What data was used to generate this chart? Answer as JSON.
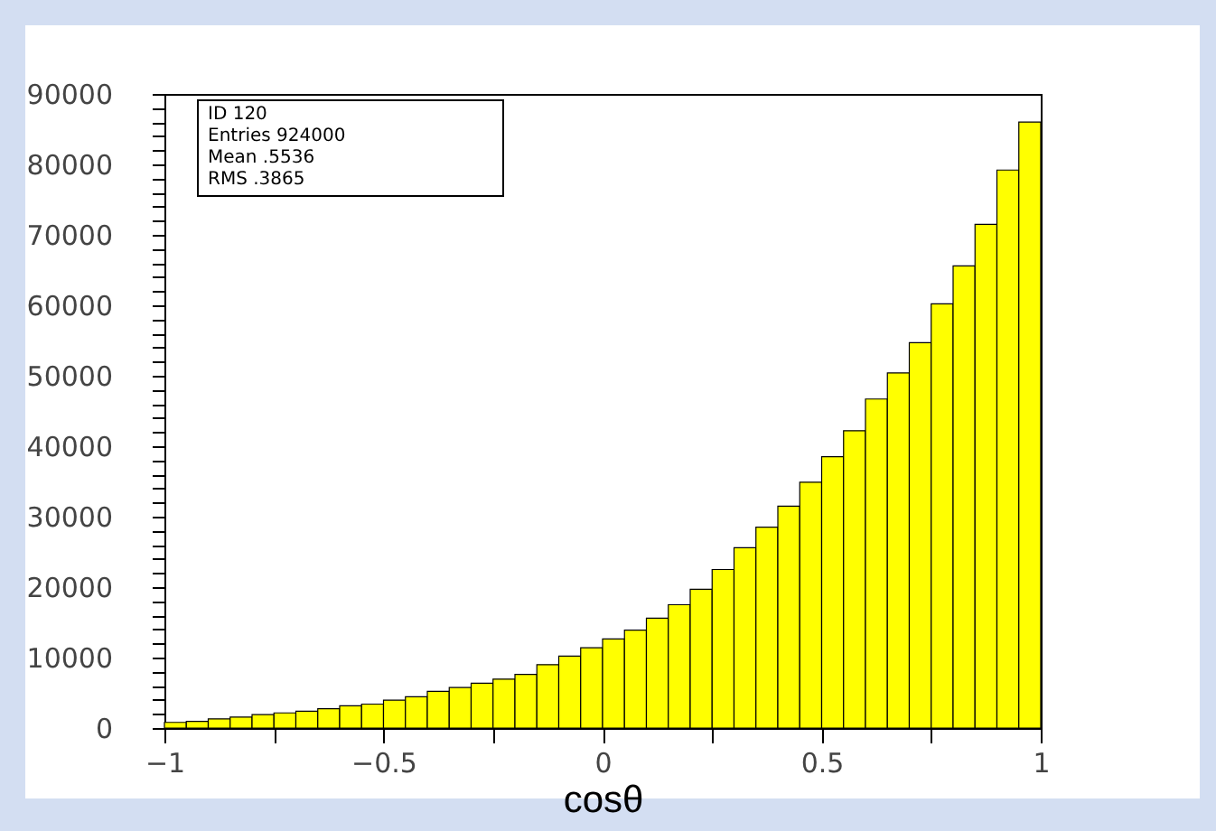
{
  "chart_data": {
    "type": "histogram",
    "xlabel": "cosθ",
    "bins": [
      -1,
      -0.95,
      -0.9,
      -0.85,
      -0.8,
      -0.75,
      -0.7,
      -0.65,
      -0.6,
      -0.55,
      -0.5,
      -0.45,
      -0.4,
      -0.35,
      -0.3,
      -0.25,
      -0.2,
      -0.15,
      -0.1,
      -0.05,
      0,
      0.05,
      0.1,
      0.15,
      0.2,
      0.25,
      0.3,
      0.35,
      0.4,
      0.45,
      0.5,
      0.55,
      0.6,
      0.65,
      0.7,
      0.75,
      0.8,
      0.85,
      0.9,
      0.95,
      1
    ],
    "values": [
      800,
      950,
      1300,
      1550,
      1900,
      2150,
      2400,
      2750,
      3150,
      3400,
      3950,
      4450,
      5200,
      5750,
      6350,
      6950,
      7600,
      9000,
      10200,
      11400,
      12650,
      13900,
      15600,
      17500,
      19700,
      22500,
      25600,
      28500,
      31500,
      34900,
      38500,
      42200,
      46700,
      50400,
      54700,
      60200,
      65600,
      71500,
      79200,
      86000
    ],
    "color": "#ffff00",
    "xlim": [
      -1,
      1
    ],
    "xticks": [
      {
        "value": -1,
        "label": "−1"
      },
      {
        "value": -0.75,
        "label": null
      },
      {
        "value": -0.5,
        "label": "−0.5"
      },
      {
        "value": -0.25,
        "label": null
      },
      0,
      {
        "value": 0.25,
        "label": null
      },
      0.5,
      {
        "value": 0.75,
        "label": null
      },
      1
    ],
    "ylim": [
      0,
      90000
    ],
    "yticks": [
      0,
      {
        "value": 2000,
        "label": null
      },
      {
        "value": 4000,
        "label": null
      },
      {
        "value": 6000,
        "label": null
      },
      {
        "value": 8000,
        "label": null
      },
      10000,
      {
        "value": 12000,
        "label": null
      },
      {
        "value": 14000,
        "label": null
      },
      {
        "value": 16000,
        "label": null
      },
      {
        "value": 18000,
        "label": null
      },
      20000,
      {
        "value": 22000,
        "label": null
      },
      {
        "value": 24000,
        "label": null
      },
      {
        "value": 26000,
        "label": null
      },
      {
        "value": 28000,
        "label": null
      },
      30000,
      {
        "value": 32000,
        "label": null
      },
      {
        "value": 34000,
        "label": null
      },
      {
        "value": 36000,
        "label": null
      },
      {
        "value": 38000,
        "label": null
      },
      40000,
      {
        "value": 42000,
        "label": null
      },
      {
        "value": 44000,
        "label": null
      },
      {
        "value": 46000,
        "label": null
      },
      {
        "value": 48000,
        "label": null
      },
      50000,
      {
        "value": 52000,
        "label": null
      },
      {
        "value": 54000,
        "label": null
      },
      {
        "value": 56000,
        "label": null
      },
      {
        "value": 58000,
        "label": null
      },
      60000,
      {
        "value": 62000,
        "label": null
      },
      {
        "value": 64000,
        "label": null
      },
      {
        "value": 66000,
        "label": null
      },
      {
        "value": 68000,
        "label": null
      },
      70000,
      {
        "value": 72000,
        "label": null
      },
      {
        "value": 74000,
        "label": null
      },
      {
        "value": 76000,
        "label": null
      },
      {
        "value": 78000,
        "label": null
      },
      80000,
      {
        "value": 82000,
        "label": null
      },
      {
        "value": 84000,
        "label": null
      },
      {
        "value": 86000,
        "label": null
      },
      {
        "value": 88000,
        "label": null
      },
      90000
    ],
    "annotations": [
      "ID 120",
      "Entries 924000",
      "Mean .5536",
      "RMS .3865"
    ],
    "grid": false
  }
}
